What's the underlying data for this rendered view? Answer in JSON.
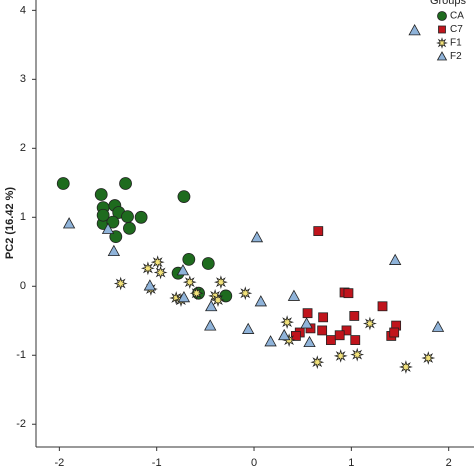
{
  "chart_data": {
    "type": "scatter",
    "ylabel": "PC2 (16.42 %)",
    "legend_title": "Groups",
    "legend": "upper right",
    "xlim": [
      -2.24,
      2.26
    ],
    "xticks": [
      -2,
      -1,
      0,
      1,
      2
    ],
    "ylim": [
      -2.33,
      4.15
    ],
    "yticks": [
      -2,
      -1,
      0,
      1,
      2,
      3,
      4
    ],
    "series": [
      {
        "name": "CA",
        "color": "#1e6b1e",
        "marker": "circle",
        "x": [
          -1.96,
          -1.57,
          -1.32,
          -0.72,
          -1.55,
          -1.43,
          -1.39,
          -1.3,
          -1.16,
          -1.55,
          -1.45,
          -1.28,
          -1.42,
          -0.67,
          -0.78,
          -0.47,
          -0.57,
          -0.29,
          -1.55
        ],
        "values": [
          1.49,
          1.33,
          1.49,
          1.3,
          1.14,
          1.17,
          1.07,
          1.01,
          1.0,
          0.91,
          0.93,
          0.84,
          0.72,
          0.39,
          0.19,
          0.33,
          -0.1,
          -0.14,
          1.03
        ]
      },
      {
        "name": "C7",
        "color": "#c0141c",
        "marker": "square",
        "x": [
          0.66,
          0.55,
          0.71,
          0.93,
          0.97,
          1.03,
          1.32,
          1.46,
          1.41,
          0.47,
          0.43,
          0.58,
          0.7,
          0.79,
          0.95,
          1.04,
          0.88,
          1.44
        ],
        "values": [
          0.8,
          -0.39,
          -0.45,
          -0.09,
          -0.1,
          -0.43,
          -0.29,
          -0.57,
          -0.72,
          -0.67,
          -0.72,
          -0.61,
          -0.64,
          -0.78,
          -0.64,
          -0.78,
          -0.71,
          -0.67
        ]
      },
      {
        "name": "F1",
        "color": "#f2e27a",
        "marker": "star",
        "x": [
          -1.37,
          -1.09,
          -0.99,
          -0.96,
          -1.06,
          -0.8,
          -0.75,
          -0.66,
          -0.59,
          -0.4,
          -0.34,
          -0.09,
          -0.37,
          0.34,
          0.36,
          0.65,
          0.89,
          1.06,
          1.19,
          1.56,
          1.79
        ],
        "values": [
          0.04,
          0.26,
          0.35,
          0.2,
          -0.04,
          -0.17,
          -0.2,
          0.06,
          -0.1,
          -0.14,
          0.06,
          -0.1,
          -0.2,
          -0.52,
          -0.78,
          -1.1,
          -1.01,
          -0.99,
          -0.54,
          -1.17,
          -1.04
        ]
      },
      {
        "name": "F2",
        "color": "#8fb3d9",
        "marker": "triangle",
        "x": [
          -1.9,
          -1.5,
          -1.44,
          -1.07,
          -0.72,
          -0.73,
          -0.45,
          -0.44,
          -0.06,
          0.03,
          0.07,
          0.17,
          0.31,
          0.41,
          0.57,
          1.45,
          1.65,
          1.89,
          0.54
        ],
        "values": [
          0.91,
          0.83,
          0.51,
          0.01,
          -0.16,
          0.23,
          -0.57,
          -0.29,
          -0.62,
          0.71,
          -0.22,
          -0.8,
          -0.71,
          -0.14,
          -0.81,
          0.38,
          3.71,
          -0.59,
          -0.54
        ]
      }
    ]
  }
}
